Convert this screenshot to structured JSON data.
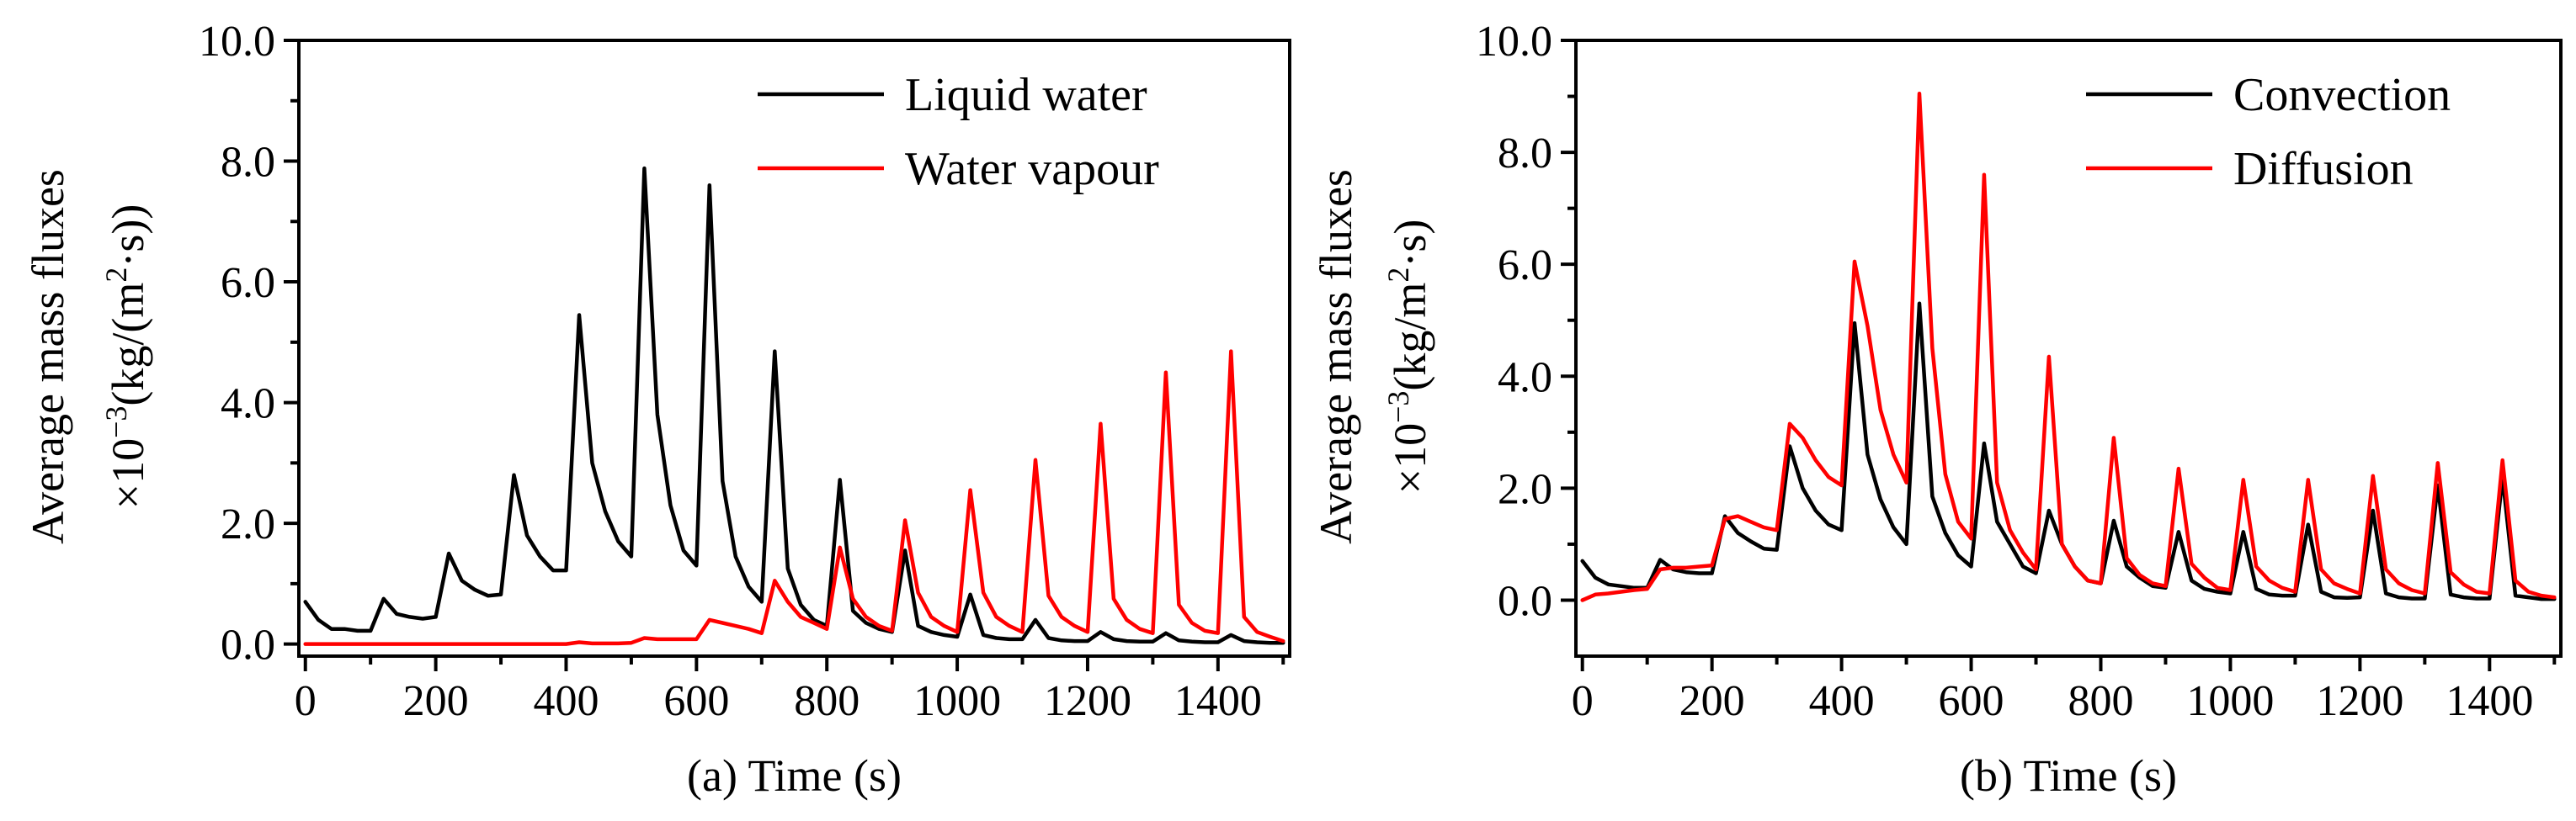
{
  "chart_data": [
    {
      "type": "line",
      "panel": "a",
      "xlabel": "(a) Time (s)",
      "ylabel_line1": "Average mass fluxes",
      "ylabel_line2_prefix": "×10",
      "ylabel_line2_exp": "−3",
      "ylabel_line2_mid": "(kg/(m",
      "ylabel_line2_exp2": "2",
      "ylabel_line2_suffix": "·s))",
      "xlim": [
        -10,
        1510
      ],
      "ylim": [
        -0.2,
        10.0
      ],
      "xticks": [
        0,
        200,
        400,
        600,
        800,
        1000,
        1200,
        1400
      ],
      "xtick_labels": [
        "0",
        "200",
        "400",
        "600",
        "800",
        "1000",
        "1200",
        "1400"
      ],
      "yticks": [
        0,
        2,
        4,
        6,
        8,
        10
      ],
      "ytick_labels": [
        "0.0",
        "2.0",
        "4.0",
        "6.0",
        "8.0",
        "10.0"
      ],
      "legend_position": "top-right",
      "series": [
        {
          "name": "Liquid water",
          "color": "#000000",
          "x": [
            0,
            20,
            40,
            60,
            80,
            100,
            120,
            140,
            160,
            180,
            200,
            220,
            240,
            260,
            280,
            300,
            320,
            340,
            360,
            380,
            400,
            420,
            440,
            460,
            480,
            500,
            520,
            540,
            560,
            580,
            600,
            620,
            640,
            660,
            680,
            700,
            720,
            740,
            760,
            780,
            800,
            820,
            840,
            860,
            880,
            900,
            920,
            940,
            960,
            980,
            1000,
            1020,
            1040,
            1060,
            1080,
            1100,
            1120,
            1140,
            1160,
            1180,
            1200,
            1220,
            1240,
            1260,
            1280,
            1300,
            1320,
            1340,
            1360,
            1380,
            1400,
            1420,
            1440,
            1460,
            1480,
            1500
          ],
          "values": [
            0.7,
            0.4,
            0.25,
            0.25,
            0.22,
            0.22,
            0.75,
            0.5,
            0.45,
            0.42,
            0.45,
            1.5,
            1.05,
            0.9,
            0.8,
            0.82,
            2.8,
            1.8,
            1.45,
            1.22,
            1.22,
            5.45,
            3.0,
            2.2,
            1.7,
            1.45,
            7.88,
            3.8,
            2.3,
            1.55,
            1.3,
            7.6,
            2.7,
            1.45,
            0.95,
            0.7,
            4.85,
            1.25,
            0.65,
            0.4,
            0.3,
            2.72,
            0.55,
            0.35,
            0.25,
            0.2,
            1.55,
            0.3,
            0.2,
            0.15,
            0.12,
            0.82,
            0.15,
            0.1,
            0.08,
            0.08,
            0.4,
            0.1,
            0.06,
            0.05,
            0.05,
            0.2,
            0.08,
            0.05,
            0.04,
            0.04,
            0.18,
            0.06,
            0.04,
            0.03,
            0.03,
            0.15,
            0.05,
            0.03,
            0.02,
            0.02
          ]
        },
        {
          "name": "Water vapour",
          "color": "#ff0000",
          "x": [
            0,
            20,
            40,
            60,
            80,
            100,
            120,
            140,
            160,
            180,
            200,
            220,
            240,
            260,
            280,
            300,
            320,
            340,
            360,
            380,
            400,
            420,
            440,
            460,
            480,
            500,
            520,
            540,
            560,
            580,
            600,
            620,
            640,
            660,
            680,
            700,
            720,
            740,
            760,
            780,
            800,
            820,
            840,
            860,
            880,
            900,
            920,
            940,
            960,
            980,
            1000,
            1020,
            1040,
            1060,
            1080,
            1100,
            1120,
            1140,
            1160,
            1180,
            1200,
            1220,
            1240,
            1260,
            1280,
            1300,
            1320,
            1340,
            1360,
            1380,
            1400,
            1420,
            1440,
            1460,
            1480,
            1500
          ],
          "values": [
            0,
            0,
            0,
            0,
            0,
            0,
            0,
            0,
            0,
            0,
            0,
            0,
            0,
            0,
            0,
            0,
            0,
            0,
            0,
            0,
            0,
            0.03,
            0.01,
            0.01,
            0.01,
            0.02,
            0.1,
            0.08,
            0.08,
            0.08,
            0.08,
            0.4,
            0.35,
            0.3,
            0.25,
            0.18,
            1.05,
            0.7,
            0.45,
            0.35,
            0.25,
            1.6,
            0.75,
            0.45,
            0.3,
            0.22,
            2.05,
            0.85,
            0.45,
            0.3,
            0.2,
            2.55,
            0.85,
            0.45,
            0.3,
            0.2,
            3.05,
            0.8,
            0.45,
            0.3,
            0.2,
            3.65,
            0.75,
            0.4,
            0.25,
            0.18,
            4.5,
            0.65,
            0.35,
            0.22,
            0.18,
            4.85,
            0.45,
            0.2,
            0.12,
            0.05
          ]
        }
      ]
    },
    {
      "type": "line",
      "panel": "b",
      "xlabel": "(b) Time (s)",
      "ylabel_line1": "Average mass fluxes",
      "ylabel_line2_prefix": "×10",
      "ylabel_line2_exp": "−3",
      "ylabel_line2_mid": "(kg/m",
      "ylabel_line2_exp2": "2",
      "ylabel_line2_suffix": "·s)",
      "xlim": [
        -10,
        1510
      ],
      "ylim": [
        -1.0,
        10.0
      ],
      "xticks": [
        0,
        200,
        400,
        600,
        800,
        1000,
        1200,
        1400
      ],
      "xtick_labels": [
        "0",
        "200",
        "400",
        "600",
        "800",
        "1000",
        "1200",
        "1400"
      ],
      "yticks": [
        0,
        2,
        4,
        6,
        8,
        10
      ],
      "ytick_labels": [
        "0.0",
        "2.0",
        "4.0",
        "6.0",
        "8.0",
        "10.0"
      ],
      "legend_position": "top-right",
      "series": [
        {
          "name": "Convection",
          "color": "#000000",
          "x": [
            0,
            20,
            40,
            60,
            80,
            100,
            120,
            140,
            160,
            180,
            200,
            220,
            240,
            260,
            280,
            300,
            320,
            340,
            360,
            380,
            400,
            420,
            440,
            460,
            480,
            500,
            520,
            540,
            560,
            580,
            600,
            620,
            640,
            660,
            680,
            700,
            720,
            740,
            760,
            780,
            800,
            820,
            840,
            860,
            880,
            900,
            920,
            940,
            960,
            980,
            1000,
            1020,
            1040,
            1060,
            1080,
            1100,
            1120,
            1140,
            1160,
            1180,
            1200,
            1220,
            1240,
            1260,
            1280,
            1300,
            1320,
            1340,
            1360,
            1380,
            1400,
            1420,
            1440,
            1460,
            1480,
            1500
          ],
          "values": [
            0.7,
            0.4,
            0.28,
            0.25,
            0.22,
            0.22,
            0.72,
            0.55,
            0.5,
            0.48,
            0.48,
            1.5,
            1.2,
            1.05,
            0.92,
            0.9,
            2.75,
            2.0,
            1.6,
            1.35,
            1.25,
            4.95,
            2.6,
            1.8,
            1.3,
            1.0,
            5.3,
            1.85,
            1.2,
            0.8,
            0.6,
            2.8,
            1.4,
            1.0,
            0.6,
            0.48,
            1.6,
            1.0,
            0.6,
            0.35,
            0.3,
            1.42,
            0.6,
            0.4,
            0.25,
            0.22,
            1.22,
            0.35,
            0.2,
            0.15,
            0.12,
            1.22,
            0.2,
            0.1,
            0.08,
            0.08,
            1.35,
            0.15,
            0.05,
            0.04,
            0.05,
            1.6,
            0.12,
            0.05,
            0.03,
            0.03,
            2.05,
            0.1,
            0.05,
            0.03,
            0.03,
            2.2,
            0.08,
            0.05,
            0.02,
            0.02
          ]
        },
        {
          "name": "Diffusion",
          "color": "#ff0000",
          "x": [
            0,
            20,
            40,
            60,
            80,
            100,
            120,
            140,
            160,
            180,
            200,
            220,
            240,
            260,
            280,
            300,
            320,
            340,
            360,
            380,
            400,
            420,
            440,
            460,
            480,
            500,
            520,
            540,
            560,
            580,
            600,
            620,
            640,
            660,
            680,
            700,
            720,
            740,
            760,
            780,
            800,
            820,
            840,
            860,
            880,
            900,
            920,
            940,
            960,
            980,
            1000,
            1020,
            1040,
            1060,
            1080,
            1100,
            1120,
            1140,
            1160,
            1180,
            1200,
            1220,
            1240,
            1260,
            1280,
            1300,
            1320,
            1340,
            1360,
            1380,
            1400,
            1420,
            1440,
            1460,
            1480,
            1500
          ],
          "values": [
            0,
            0.1,
            0.12,
            0.15,
            0.18,
            0.2,
            0.55,
            0.58,
            0.58,
            0.6,
            0.62,
            1.45,
            1.5,
            1.4,
            1.3,
            1.25,
            3.15,
            2.9,
            2.5,
            2.2,
            2.05,
            6.05,
            4.9,
            3.4,
            2.6,
            2.1,
            9.05,
            4.5,
            2.25,
            1.4,
            1.1,
            7.6,
            2.1,
            1.25,
            0.85,
            0.55,
            4.35,
            1.0,
            0.6,
            0.35,
            0.3,
            2.9,
            0.75,
            0.45,
            0.3,
            0.25,
            2.35,
            0.65,
            0.4,
            0.22,
            0.18,
            2.15,
            0.6,
            0.35,
            0.22,
            0.15,
            2.15,
            0.55,
            0.3,
            0.2,
            0.12,
            2.22,
            0.55,
            0.3,
            0.18,
            0.12,
            2.45,
            0.5,
            0.28,
            0.15,
            0.12,
            2.5,
            0.35,
            0.15,
            0.08,
            0.05
          ]
        }
      ]
    }
  ]
}
